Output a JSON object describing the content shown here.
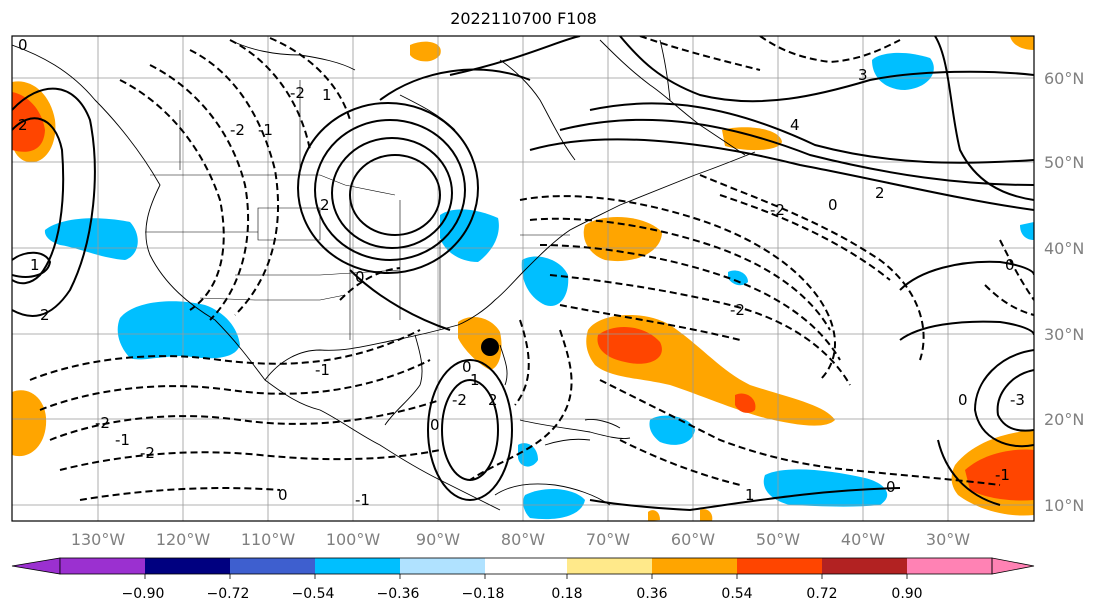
{
  "title": "2022110700 F108",
  "lat_labels": [
    "60°N",
    "50°N",
    "40°N",
    "30°N",
    "20°N",
    "10°N"
  ],
  "lon_labels": [
    "130°W",
    "120°W",
    "110°W",
    "100°W",
    "90°W",
    "80°W",
    "70°W",
    "60°W",
    "50°W",
    "40°W",
    "30°W"
  ],
  "colorbar": {
    "ticks": [
      "−0.90",
      "−0.72",
      "−0.54",
      "−0.36",
      "−0.18",
      "0.18",
      "0.36",
      "0.54",
      "0.72",
      "0.90"
    ],
    "colors": [
      "#9b30d0",
      "#000080",
      "#3e5fcf",
      "#00bfff",
      "#b0e2ff",
      "#ffffff",
      "#ffe98a",
      "#ffa500",
      "#ff4500",
      "#b22222",
      "#ff82b4"
    ]
  },
  "contour_labels": [
    "0",
    "2",
    "1",
    "2",
    "-2",
    "-1",
    "-2",
    "1",
    "0",
    "2",
    "3",
    "4",
    "-2",
    "0",
    "2",
    "-2",
    "-1",
    "0",
    "-2",
    "-1",
    "-2",
    "-2",
    "0",
    "-1",
    "0",
    "1",
    "2",
    "-3",
    "0",
    "-1",
    "0",
    "1",
    "0"
  ],
  "marker": "storm-center"
}
